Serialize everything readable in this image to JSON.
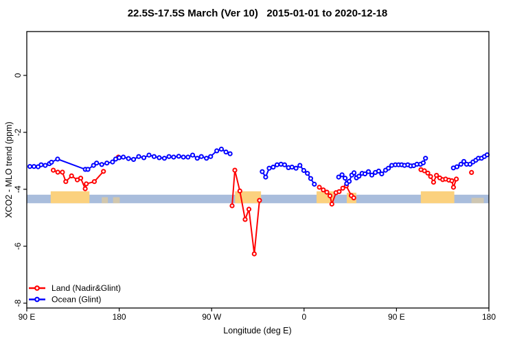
{
  "chart_data": {
    "type": "line",
    "title": "22.5S-17.5S March (Ver 10)   2015-01-01 to 2020-12-18",
    "xlabel": "Longitude (deg E)",
    "ylabel": "XCO2 - MLO trend (ppm)",
    "xlim": [
      90,
      540
    ],
    "ylim": [
      -8.17,
      1.54
    ],
    "grid": false,
    "legend_position": "bottom-left",
    "x_ticks": [
      {
        "value": 90,
        "label": "90 E"
      },
      {
        "value": 180,
        "label": "180"
      },
      {
        "value": 270,
        "label": "90 W"
      },
      {
        "value": 360,
        "label": "0"
      },
      {
        "value": 450,
        "label": "90 E"
      },
      {
        "value": 540,
        "label": "180"
      }
    ],
    "y_ticks": [
      {
        "value": 0,
        "label": "0"
      },
      {
        "value": -2,
        "label": "-2"
      },
      {
        "value": -4,
        "label": "-4"
      },
      {
        "value": -6,
        "label": "-6"
      },
      {
        "value": -8,
        "label": "-8"
      }
    ],
    "ocean_band": {
      "color": "#a9bddc",
      "y_top": -4.19,
      "y_bottom": -4.49
    },
    "land_patches": {
      "color": "#fbd17e",
      "patches": [
        {
          "from": 113.3,
          "to": 151.0,
          "top": -4.07,
          "opacity": 1
        },
        {
          "from": 163.0,
          "to": 169.0,
          "top": -4.28,
          "opacity": 0.5
        },
        {
          "from": 174.0,
          "to": 180.5,
          "top": -4.28,
          "opacity": 0.5
        },
        {
          "from": 292.8,
          "to": 318.1,
          "top": -4.07,
          "opacity": 1
        },
        {
          "from": 372.2,
          "to": 388.9,
          "top": -4.07,
          "opacity": 1
        },
        {
          "from": 401.6,
          "to": 410.9,
          "top": -4.12,
          "opacity": 1
        },
        {
          "from": 473.7,
          "to": 506.3,
          "top": -4.07,
          "opacity": 1
        },
        {
          "from": 523.0,
          "to": 535.0,
          "top": -4.3,
          "opacity": 0.45
        }
      ]
    },
    "series": [
      {
        "name": "Land (Nadir&Glint)",
        "color": "#ff0000",
        "segments": [
          [
            [
              115.8,
              -3.33
            ],
            [
              120.2,
              -3.4
            ],
            [
              124.7,
              -3.4
            ],
            [
              128.0,
              -3.73
            ],
            [
              133.6,
              -3.53
            ],
            [
              139.2,
              -3.67
            ],
            [
              142.5,
              -3.61
            ],
            [
              146.9,
              -3.98
            ],
            [
              148.0,
              -3.81
            ],
            [
              155.8,
              -3.73
            ],
            [
              164.7,
              -3.37
            ]
          ],
          [
            [
              179.2,
              -2.87
            ]
          ],
          [
            [
              289.9,
              -4.58
            ],
            [
              292.6,
              -3.33
            ],
            [
              297.5,
              -4.06
            ],
            [
              302.6,
              -5.06
            ],
            [
              306.3,
              -4.7
            ],
            [
              311.5,
              -6.27
            ],
            [
              316.6,
              -4.39
            ]
          ],
          [
            [
              374.9,
              -3.93
            ],
            [
              378.7,
              -4.02
            ],
            [
              382.2,
              -4.1
            ],
            [
              385.3,
              -4.23
            ],
            [
              387.1,
              -4.52
            ],
            [
              391.1,
              -4.12
            ],
            [
              394.2,
              -4.08
            ],
            [
              397.7,
              -3.96
            ],
            [
              401.1,
              -3.88
            ],
            [
              406.0,
              -4.22
            ],
            [
              408.4,
              -4.3
            ]
          ],
          [
            [
              473.8,
              -3.31
            ],
            [
              477.2,
              -3.35
            ],
            [
              480.5,
              -3.43
            ],
            [
              483.2,
              -3.55
            ],
            [
              486.1,
              -3.75
            ],
            [
              489.0,
              -3.51
            ],
            [
              492.1,
              -3.6
            ],
            [
              495.0,
              -3.66
            ],
            [
              497.9,
              -3.64
            ],
            [
              501.0,
              -3.68
            ],
            [
              503.9,
              -3.7
            ],
            [
              505.5,
              -3.93
            ],
            [
              508.3,
              -3.64
            ]
          ],
          [
            [
              523.1,
              -3.41
            ]
          ]
        ]
      },
      {
        "name": "Ocean (Glint)",
        "color": "#0000ff",
        "segments": [
          [
            [
              93.0,
              -3.2
            ],
            [
              97.0,
              -3.2
            ],
            [
              101.0,
              -3.21
            ],
            [
              104.0,
              -3.14
            ],
            [
              108.0,
              -3.16
            ],
            [
              112.0,
              -3.1
            ],
            [
              114.0,
              -3.05
            ],
            [
              120.0,
              -2.94
            ],
            [
              147.0,
              -3.3
            ],
            [
              149.5,
              -3.3
            ],
            [
              155.0,
              -3.16
            ],
            [
              158.0,
              -3.08
            ],
            [
              163.0,
              -3.13
            ],
            [
              168.0,
              -3.08
            ],
            [
              173.5,
              -3.04
            ],
            [
              176.5,
              -2.94
            ],
            [
              180.0,
              -2.89
            ],
            [
              184.0,
              -2.87
            ],
            [
              189.0,
              -2.92
            ],
            [
              194.0,
              -2.95
            ],
            [
              199.0,
              -2.85
            ],
            [
              204.0,
              -2.89
            ],
            [
              209.0,
              -2.8
            ],
            [
              214.0,
              -2.85
            ],
            [
              219.0,
              -2.89
            ],
            [
              224.0,
              -2.91
            ],
            [
              228.5,
              -2.85
            ],
            [
              233.0,
              -2.87
            ],
            [
              238.0,
              -2.84
            ],
            [
              242.5,
              -2.87
            ],
            [
              247.0,
              -2.87
            ],
            [
              251.5,
              -2.8
            ],
            [
              256.0,
              -2.91
            ],
            [
              260.0,
              -2.85
            ],
            [
              265.0,
              -2.91
            ],
            [
              269.0,
              -2.85
            ],
            [
              275.0,
              -2.65
            ],
            [
              279.5,
              -2.59
            ],
            [
              284.0,
              -2.69
            ],
            [
              288.0,
              -2.75
            ]
          ],
          [
            [
              319.3,
              -3.38
            ],
            [
              322.6,
              -3.57
            ],
            [
              326.0,
              -3.26
            ],
            [
              330.0,
              -3.22
            ],
            [
              333.7,
              -3.14
            ],
            [
              337.5,
              -3.12
            ],
            [
              341.0,
              -3.14
            ],
            [
              344.8,
              -3.24
            ],
            [
              348.2,
              -3.22
            ],
            [
              352.2,
              -3.26
            ],
            [
              356.0,
              -3.16
            ],
            [
              359.7,
              -3.34
            ],
            [
              363.3,
              -3.44
            ],
            [
              366.4,
              -3.62
            ],
            [
              370.0,
              -3.82
            ]
          ],
          [
            [
              393.7,
              -3.57
            ],
            [
              397.0,
              -3.49
            ],
            [
              400.0,
              -3.61
            ],
            [
              401.5,
              -3.8
            ],
            [
              404.0,
              -3.72
            ],
            [
              406.5,
              -3.5
            ],
            [
              408.7,
              -3.42
            ],
            [
              411.0,
              -3.6
            ],
            [
              413.5,
              -3.54
            ],
            [
              416.5,
              -3.44
            ],
            [
              419.3,
              -3.46
            ],
            [
              422.7,
              -3.38
            ],
            [
              426.0,
              -3.5
            ],
            [
              429.4,
              -3.41
            ],
            [
              432.7,
              -3.36
            ],
            [
              435.6,
              -3.46
            ],
            [
              439.4,
              -3.33
            ],
            [
              442.2,
              -3.26
            ],
            [
              445.4,
              -3.16
            ],
            [
              448.9,
              -3.14
            ],
            [
              452.1,
              -3.14
            ],
            [
              455.0,
              -3.14
            ],
            [
              457.8,
              -3.16
            ],
            [
              461.0,
              -3.14
            ],
            [
              463.9,
              -3.18
            ],
            [
              466.8,
              -3.17
            ],
            [
              469.9,
              -3.12
            ],
            [
              473.4,
              -3.12
            ],
            [
              476.1,
              -3.07
            ],
            [
              478.3,
              -2.91
            ]
          ],
          [
            [
              505.4,
              -3.25
            ],
            [
              508.9,
              -3.21
            ],
            [
              512.7,
              -3.12
            ],
            [
              515.6,
              -3.02
            ],
            [
              518.3,
              -3.12
            ],
            [
              521.6,
              -3.12
            ],
            [
              524.5,
              -3.04
            ],
            [
              527.2,
              -2.98
            ],
            [
              529.8,
              -2.91
            ],
            [
              532.8,
              -2.91
            ],
            [
              535.6,
              -2.85
            ],
            [
              538.3,
              -2.79
            ]
          ]
        ]
      }
    ]
  }
}
